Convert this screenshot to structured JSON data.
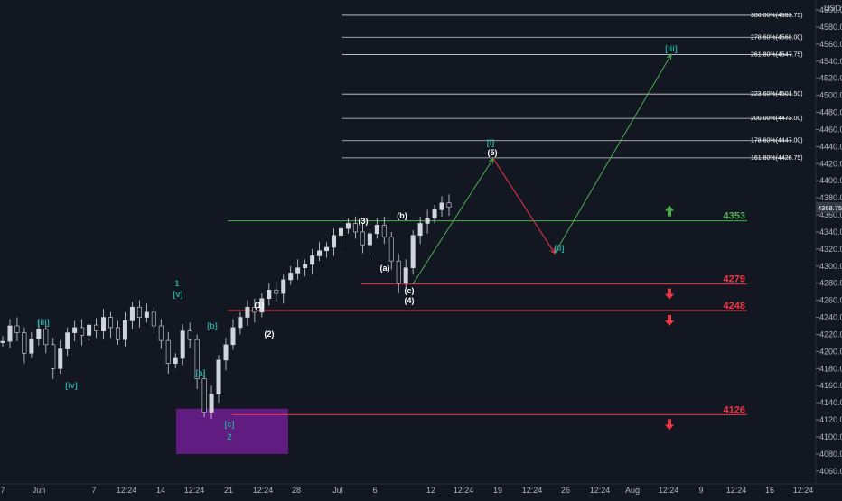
{
  "chart_data": {
    "type": "candlestick",
    "currency": "USD",
    "y_ticks": [
      4060,
      4080,
      4100,
      4120,
      4140,
      4160,
      4180,
      4200,
      4220,
      4240,
      4260,
      4280,
      4300,
      4320,
      4340,
      4360,
      4380,
      4400,
      4420,
      4440,
      4460,
      4480,
      4500,
      4520,
      4540,
      4560,
      4580,
      4600
    ],
    "x_ticks": [
      "7",
      "Jun",
      "7",
      "12:24",
      "14",
      "12:24",
      "21",
      "12:24",
      "28",
      "Jul",
      "6",
      "12",
      "12:24",
      "19",
      "12:24",
      "26",
      "12:24",
      "Aug",
      "12:24",
      "9",
      "12:24",
      "16",
      "12:24"
    ],
    "current_price": "4368.75",
    "price_series": [
      4212,
      4230,
      4222,
      4198,
      4215,
      4226,
      4208,
      4180,
      4203,
      4222,
      4228,
      4219,
      4231,
      4224,
      4240,
      4228,
      4214,
      4236,
      4252,
      4240,
      4246,
      4230,
      4213,
      4186,
      4192,
      4224,
      4214,
      4168,
      4129,
      4150,
      4190,
      4208,
      4228,
      4240,
      4252,
      4246,
      4262,
      4272,
      4268,
      4284,
      4292,
      4298,
      4302,
      4312,
      4318,
      4322,
      4336,
      4344,
      4350,
      4340,
      4325,
      4338,
      4348,
      4334,
      4306,
      4280,
      4298,
      4336,
      4350,
      4356,
      4366,
      4374,
      4369
    ],
    "fib_levels": [
      {
        "label": "300.00%(4593.75)",
        "price": 4593.75
      },
      {
        "label": "278.60%(4568.00)",
        "price": 4568.0
      },
      {
        "label": "261.80%(4547.75)",
        "price": 4547.75
      },
      {
        "label": "223.60%(4501.50)",
        "price": 4501.5
      },
      {
        "label": "200.00%(4473.00)",
        "price": 4473.0
      },
      {
        "label": "178.60%(4447.00)",
        "price": 4447.0
      },
      {
        "label": "161.80%(4426.75)",
        "price": 4426.75
      }
    ],
    "key_levels": [
      {
        "label": "4353",
        "price": 4353,
        "color": "#4caf50",
        "direction": "up"
      },
      {
        "label": "4279",
        "price": 4279,
        "color": "#f23645",
        "direction": "down"
      },
      {
        "label": "4248",
        "price": 4248,
        "color": "#f23645",
        "direction": "down"
      },
      {
        "label": "4126",
        "price": 4126,
        "color": "#f23645",
        "direction": "down"
      }
    ],
    "wave_labels": [
      {
        "text": "[iii]",
        "color": "#26a69a"
      },
      {
        "text": "[iv]",
        "color": "#26a69a"
      },
      {
        "text": "1",
        "color": "#26a69a"
      },
      {
        "text": "[v]",
        "color": "#26a69a"
      },
      {
        "text": "[b]",
        "color": "#26a69a"
      },
      {
        "text": "[a]",
        "color": "#26a69a"
      },
      {
        "text": "[c]",
        "color": "#26a69a"
      },
      {
        "text": "2",
        "color": "#26a69a"
      },
      {
        "text": "(1)",
        "color": "#ffffff"
      },
      {
        "text": "(2)",
        "color": "#ffffff"
      },
      {
        "text": "(3)",
        "color": "#ffffff"
      },
      {
        "text": "(b)",
        "color": "#ffffff"
      },
      {
        "text": "(a)",
        "color": "#ffffff"
      },
      {
        "text": "(c)",
        "color": "#ffffff"
      },
      {
        "text": "(4)",
        "color": "#ffffff"
      },
      {
        "text": "[i]",
        "color": "#26a69a"
      },
      {
        "text": "(5)",
        "color": "#ffffff"
      },
      {
        "text": "[ii]",
        "color": "#26a69a"
      },
      {
        "text": "[iii]",
        "color": "#26a69a"
      }
    ],
    "projection": {
      "points": [
        {
          "x_label": "Jul 12",
          "price": 4279
        },
        {
          "x_label": "Jul 19",
          "price": 4426
        },
        {
          "x_label": "Jul 26",
          "price": 4315
        },
        {
          "x_label": "Aug",
          "price": 4548
        }
      ],
      "colors": [
        "#4caf50",
        "#f23645",
        "#4caf50"
      ]
    },
    "support_zone": {
      "price_high": 4133,
      "price_low": 4080,
      "color": "#7b1fa2"
    }
  }
}
